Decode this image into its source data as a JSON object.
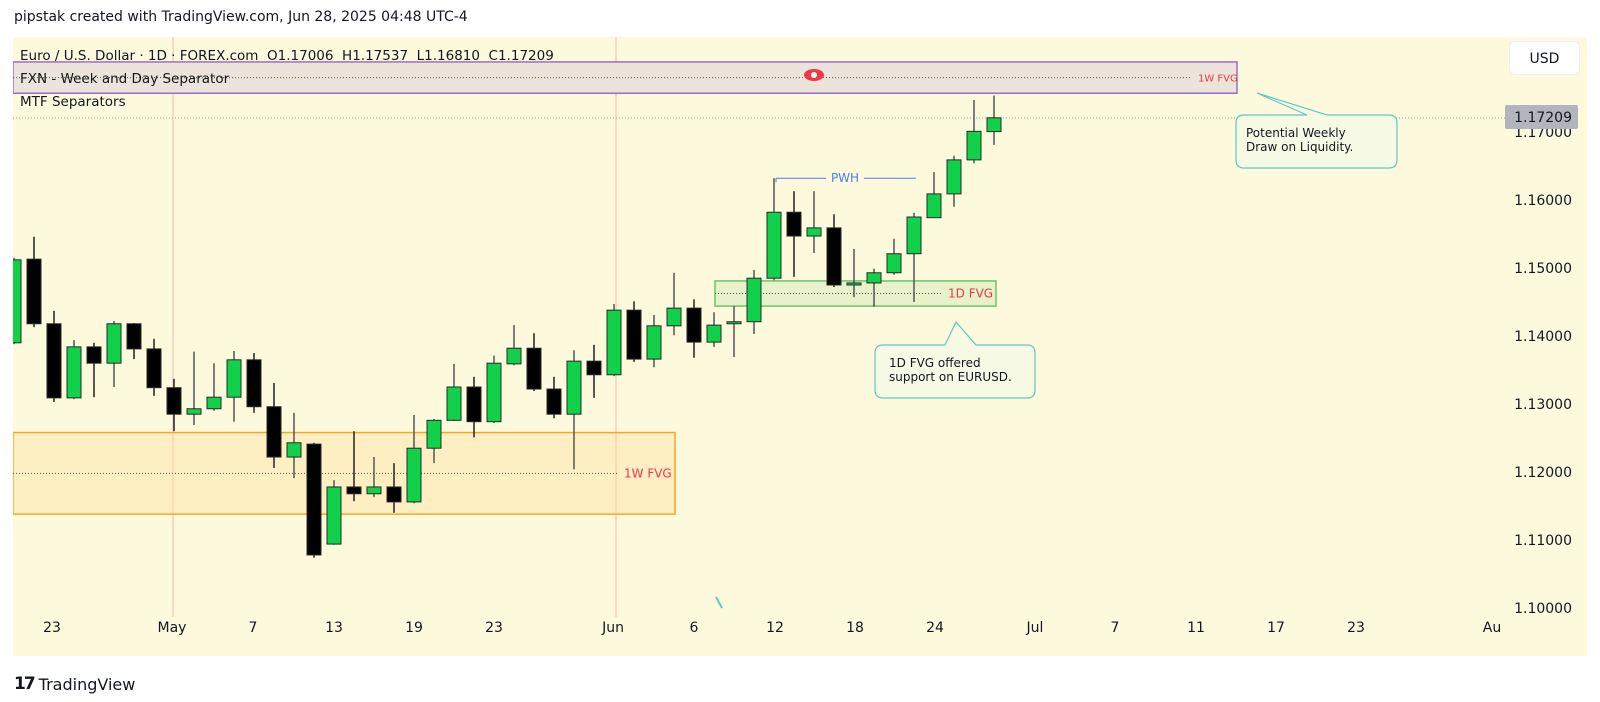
{
  "header": {
    "attribution": "pipstak created with TradingView.com, Jun 28, 2025 04:48 UTC-4"
  },
  "legend": {
    "symbol_line": "Euro / U.S. Dollar · 1D · FOREX.com  O1.17006  H1.17537  L1.16810  C1.17209",
    "indicator_1": "FXN - Week and Day Separator",
    "indicator_2": "MTF Separators"
  },
  "currency_button": "USD",
  "last_price_label": "1.17209",
  "footer": {
    "brand": "TradingView",
    "logo_text": "17"
  },
  "colors": {
    "background": "#fdf9dc",
    "up": "#0fd14a",
    "down": "#000000",
    "fvg_label": "#f23645",
    "pwh": "#4b7cf3",
    "callout_border": "#62c9c1",
    "weekly_fvg_border": "#9b6dc9",
    "lower_fvg_border": "#f5a623",
    "daily_fvg_border": "#6cc46c",
    "separator": "#f4b9b0"
  },
  "annotations": {
    "weekly_fvg_top": {
      "label": "1W FVG",
      "top": 1.1803,
      "bottom": 1.1757
    },
    "weekly_fvg_bottom": {
      "label": "1W FVG",
      "top": 1.1258,
      "bottom": 1.1138
    },
    "daily_fvg": {
      "label": "1D FVG",
      "top": 1.1481,
      "bottom": 1.1444
    },
    "pwh": {
      "label": "PWH",
      "price": 1.1632
    },
    "callout_weekly": "Potential Weekly\nDraw on Liquidity.",
    "callout_daily": "1D FVG offered\nsupport on EURUSD.",
    "eye_icon": "eye-icon"
  },
  "chart_data": {
    "type": "candlestick",
    "symbol": "EURUSD",
    "interval": "1D",
    "ylim": [
      1.0985,
      1.1855
    ],
    "y_ticks": [
      "1.17000",
      "1.16000",
      "1.15000",
      "1.14000",
      "1.13000",
      "1.12000",
      "1.11000",
      "1.10000"
    ],
    "x_ticks": [
      "23",
      "May",
      "7",
      "13",
      "19",
      "23",
      "Jun",
      "6",
      "12",
      "18",
      "24",
      "Jul",
      "7",
      "11",
      "17",
      "23",
      "Au"
    ],
    "ohlc": [
      [
        1.139,
        1.1515,
        1.1388,
        1.1512
      ],
      [
        1.1513,
        1.1546,
        1.1413,
        1.1418
      ],
      [
        1.1418,
        1.1437,
        1.1303,
        1.1309
      ],
      [
        1.1309,
        1.1394,
        1.1307,
        1.1384
      ],
      [
        1.1384,
        1.139,
        1.131,
        1.136
      ],
      [
        1.136,
        1.1422,
        1.1325,
        1.1418
      ],
      [
        1.1418,
        1.1419,
        1.1366,
        1.1381
      ],
      [
        1.1381,
        1.1396,
        1.1312,
        1.1324
      ],
      [
        1.1324,
        1.1337,
        1.126,
        1.1285
      ],
      [
        1.1285,
        1.1377,
        1.1269,
        1.1293
      ],
      [
        1.1293,
        1.136,
        1.129,
        1.131
      ],
      [
        1.131,
        1.1378,
        1.1274,
        1.1365
      ],
      [
        1.1365,
        1.1375,
        1.1287,
        1.1296
      ],
      [
        1.1296,
        1.1331,
        1.1206,
        1.1222
      ],
      [
        1.1222,
        1.1287,
        1.1191,
        1.1243
      ],
      [
        1.1241,
        1.1243,
        1.1074,
        1.1078
      ],
      [
        1.1094,
        1.1188,
        1.1093,
        1.1178
      ],
      [
        1.1178,
        1.126,
        1.1157,
        1.1168
      ],
      [
        1.1168,
        1.1222,
        1.1163,
        1.1178
      ],
      [
        1.1178,
        1.1213,
        1.114,
        1.1156
      ],
      [
        1.1156,
        1.1284,
        1.1154,
        1.1235
      ],
      [
        1.1235,
        1.1278,
        1.1213,
        1.1276
      ],
      [
        1.1276,
        1.1359,
        1.1275,
        1.1325
      ],
      [
        1.1325,
        1.134,
        1.1251,
        1.1274
      ],
      [
        1.1274,
        1.1371,
        1.1272,
        1.136
      ],
      [
        1.1359,
        1.1416,
        1.1357,
        1.1382
      ],
      [
        1.1382,
        1.1404,
        1.1319,
        1.1322
      ],
      [
        1.1322,
        1.134,
        1.1279,
        1.1285
      ],
      [
        1.1285,
        1.1379,
        1.1204,
        1.1363
      ],
      [
        1.1363,
        1.1387,
        1.1309,
        1.1343
      ],
      [
        1.1343,
        1.1447,
        1.1341,
        1.1438
      ],
      [
        1.1438,
        1.1451,
        1.1362,
        1.1366
      ],
      [
        1.1366,
        1.1431,
        1.1354,
        1.1415
      ],
      [
        1.1415,
        1.1493,
        1.1401,
        1.1441
      ],
      [
        1.1441,
        1.1454,
        1.1368,
        1.1391
      ],
      [
        1.1391,
        1.1435,
        1.1384,
        1.1416
      ],
      [
        1.1418,
        1.1444,
        1.1369,
        1.1421
      ],
      [
        1.1421,
        1.1497,
        1.1403,
        1.1485
      ],
      [
        1.1485,
        1.1632,
        1.1482,
        1.1582
      ],
      [
        1.1582,
        1.1613,
        1.1487,
        1.1547
      ],
      [
        1.1547,
        1.1613,
        1.1522,
        1.1559
      ],
      [
        1.1559,
        1.1579,
        1.1472,
        1.1475
      ],
      [
        1.1475,
        1.1528,
        1.1457,
        1.1478
      ],
      [
        1.1478,
        1.1499,
        1.1443,
        1.1493
      ],
      [
        1.1493,
        1.1543,
        1.149,
        1.1521
      ],
      [
        1.1521,
        1.1581,
        1.145,
        1.1575
      ],
      [
        1.1574,
        1.1641,
        1.1574,
        1.1609
      ],
      [
        1.1609,
        1.1665,
        1.159,
        1.1659
      ],
      [
        1.1659,
        1.1747,
        1.1654,
        1.1701
      ],
      [
        1.17006,
        1.17537,
        1.1681,
        1.17209
      ]
    ],
    "last_price": 1.17209
  }
}
